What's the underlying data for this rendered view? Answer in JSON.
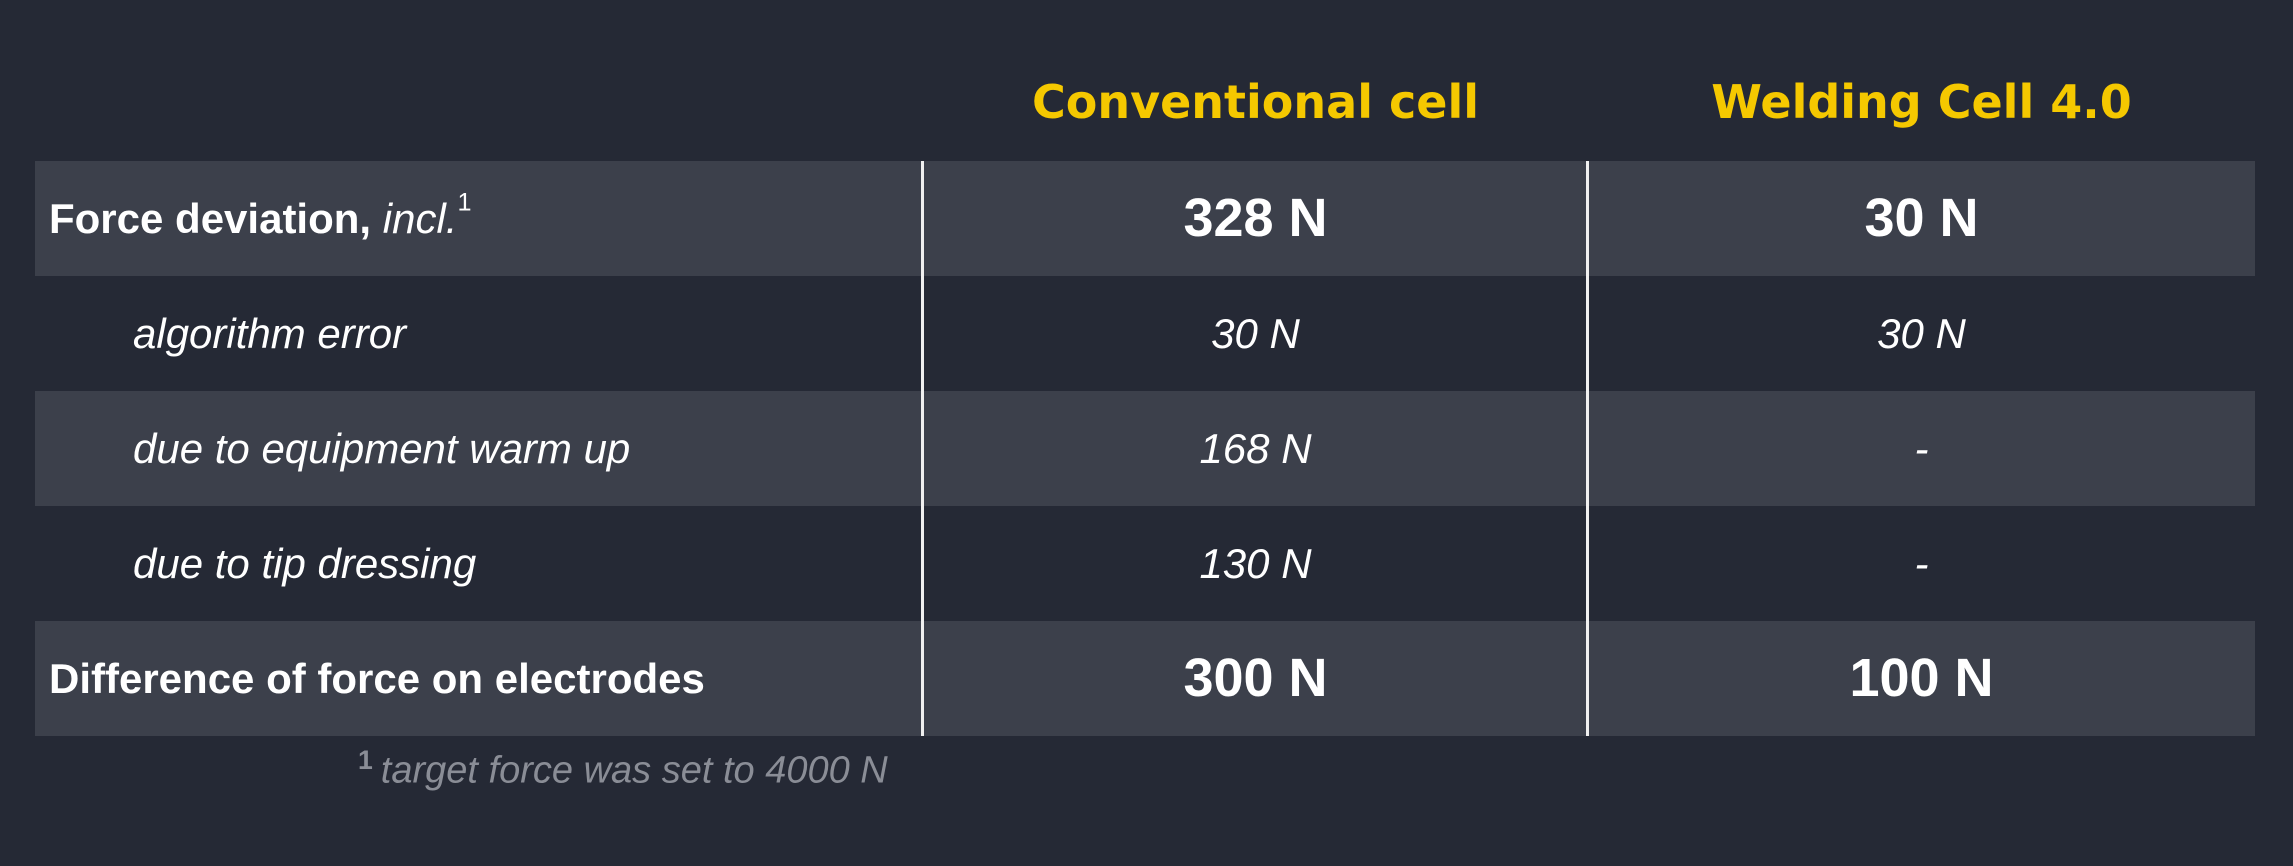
{
  "header": {
    "columns": [
      "Conventional cell",
      "Welding Cell 4.0"
    ]
  },
  "table": {
    "rows": [
      {
        "label": "Force deviation,",
        "label_italic": "incl.",
        "note_mark": "1",
        "values": [
          "328 N",
          "30 N"
        ]
      },
      {
        "label": "algorithm error",
        "values": [
          "30 N",
          "30 N"
        ]
      },
      {
        "label": "due to equipment warm up",
        "values": [
          "168 N",
          "-"
        ]
      },
      {
        "label": "due to tip dressing",
        "values": [
          "130 N",
          "-"
        ]
      },
      {
        "label": "Difference of force on electrodes",
        "values": [
          "300 N",
          "100 N"
        ]
      }
    ]
  },
  "footnote": {
    "mark": "1",
    "text": "target force was set to 4000 N"
  }
}
